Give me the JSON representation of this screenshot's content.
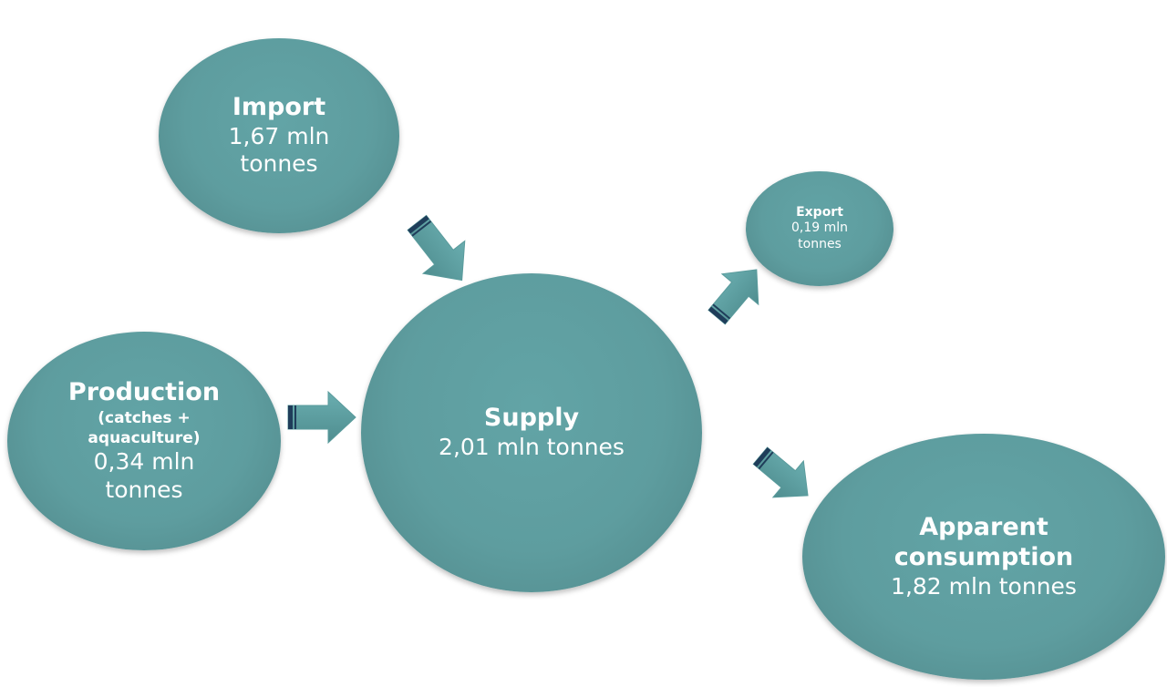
{
  "nodes": {
    "import": {
      "title": "Import",
      "value": "1,67 mln tonnes"
    },
    "export": {
      "title": "Export",
      "value": "0,19 mln tonnes"
    },
    "production": {
      "title": "Production",
      "subtitle": "(catches + aquaculture)",
      "value": "0,34 mln tonnes"
    },
    "supply": {
      "title": "Supply",
      "value": "2,01 mln tonnes"
    },
    "consumption": {
      "title": "Apparent consumption",
      "value": "1,82 mln tonnes"
    }
  },
  "colors": {
    "node_fill": "#5e9d9f",
    "arrow_fill": "#5a9b9c",
    "arrow_outline": "#1f3d5a",
    "text": "#ffffff"
  },
  "edges": [
    {
      "from": "import",
      "to": "supply"
    },
    {
      "from": "production",
      "to": "supply"
    },
    {
      "from": "supply",
      "to": "export"
    },
    {
      "from": "supply",
      "to": "consumption"
    }
  ]
}
